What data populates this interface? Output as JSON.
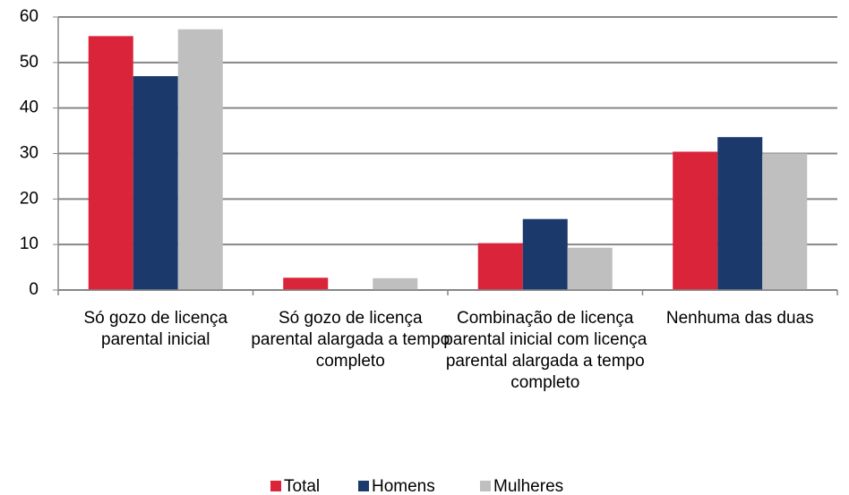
{
  "chart_data": {
    "type": "bar",
    "categories": [
      "Só gozo de licença parental inicial",
      "Só gozo de licença parental alargada a tempo completo",
      "Combinação de licença parental inicial com licença parental alargada a tempo completo",
      "Nenhuma das duas"
    ],
    "series": [
      {
        "name": "Total",
        "color": "#d9243a",
        "values": [
          55.8,
          2.7,
          10.3,
          30.4
        ]
      },
      {
        "name": "Homens",
        "color": "#1b3a6b",
        "values": [
          47,
          0,
          15.6,
          33.6
        ]
      },
      {
        "name": "Mulheres",
        "color": "#bfbfbf",
        "values": [
          57.3,
          2.6,
          9.3,
          30.0
        ]
      }
    ],
    "ylim": [
      0,
      60
    ],
    "yticks": [
      0,
      10,
      20,
      30,
      40,
      50,
      60
    ],
    "grid": true,
    "legend": "bottom"
  }
}
